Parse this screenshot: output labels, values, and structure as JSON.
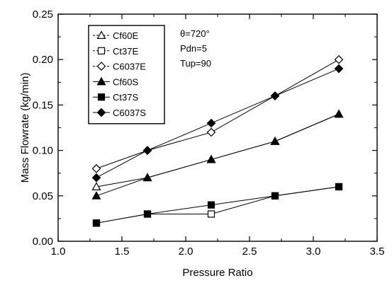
{
  "chart_data": {
    "type": "line",
    "xlabel": "Pressure Ratio",
    "ylabel": "Mass Flowrate (kg/min)",
    "xlim": [
      1.0,
      3.5
    ],
    "ylim": [
      0.0,
      0.25
    ],
    "xticks": [
      "1.0",
      "1.5",
      "2.0",
      "2.5",
      "3.0",
      "3.5"
    ],
    "yticks": [
      "0.00",
      "0.05",
      "0.10",
      "0.15",
      "0.20",
      "0.25"
    ],
    "grid": false,
    "legend_position": "top-left",
    "annotations": [
      "θ=720°",
      "Pdn=5",
      "Tup=90"
    ],
    "series": [
      {
        "name": "Cf60E",
        "marker": "triangle-open",
        "x": [
          1.3,
          1.7,
          2.2,
          2.7,
          3.2
        ],
        "y": [
          0.06,
          0.07,
          0.09,
          0.11,
          0.14
        ]
      },
      {
        "name": "Ct37E",
        "marker": "square-open",
        "x": [
          1.3,
          1.7,
          2.2,
          2.7,
          3.2
        ],
        "y": [
          0.02,
          0.03,
          0.03,
          0.05,
          0.06
        ]
      },
      {
        "name": "C6037E",
        "marker": "diamond-open",
        "x": [
          1.3,
          1.7,
          2.2,
          2.7,
          3.2
        ],
        "y": [
          0.08,
          0.1,
          0.12,
          0.16,
          0.2
        ]
      },
      {
        "name": "Cf60S",
        "marker": "triangle-filled",
        "x": [
          1.3,
          1.7,
          2.2,
          2.7,
          3.2
        ],
        "y": [
          0.05,
          0.07,
          0.09,
          0.11,
          0.14
        ]
      },
      {
        "name": "Ct37S",
        "marker": "square-filled",
        "x": [
          1.3,
          1.7,
          2.2,
          2.7,
          3.2
        ],
        "y": [
          0.02,
          0.03,
          0.04,
          0.05,
          0.06
        ]
      },
      {
        "name": "C6037S",
        "marker": "diamond-filled",
        "x": [
          1.3,
          1.7,
          2.2,
          2.7,
          3.2
        ],
        "y": [
          0.07,
          0.1,
          0.13,
          0.16,
          0.19
        ]
      }
    ]
  }
}
